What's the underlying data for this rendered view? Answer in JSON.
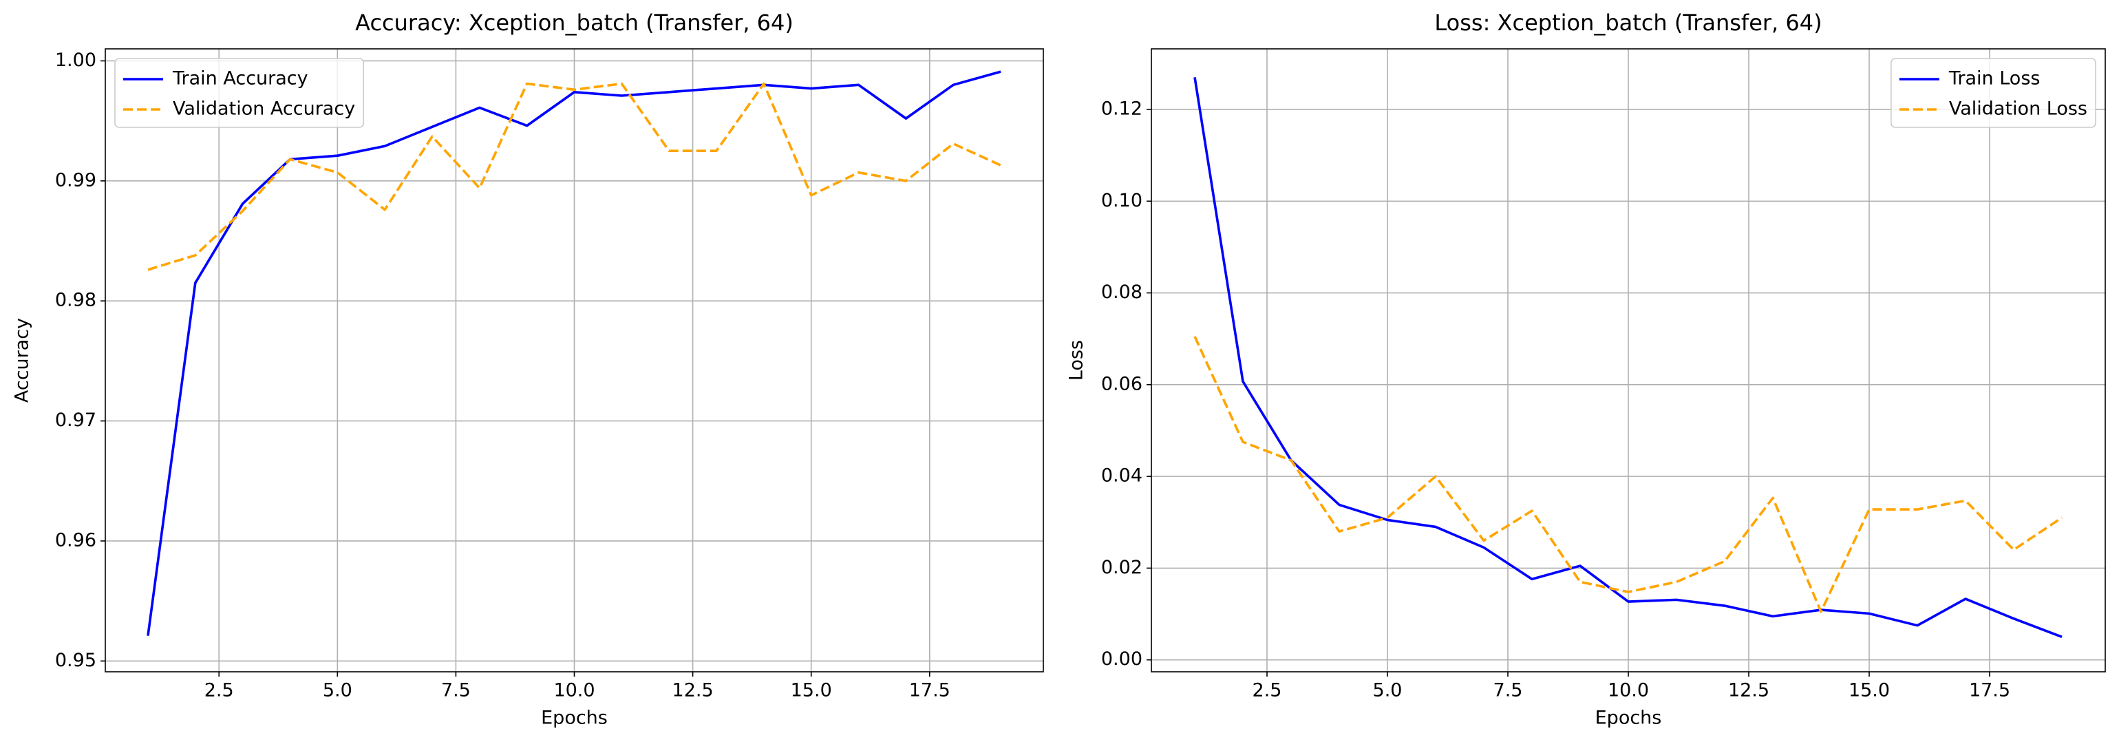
{
  "chart_data": [
    {
      "type": "line",
      "title": "Accuracy: Xception_batch (Transfer, 64)",
      "xlabel": "Epochs",
      "ylabel": "Accuracy",
      "x": [
        1,
        2,
        3,
        4,
        5,
        6,
        7,
        8,
        9,
        10,
        11,
        12,
        13,
        14,
        15,
        16,
        17,
        18,
        19
      ],
      "series": [
        {
          "name": "Train Accuracy",
          "color": "#0000ff",
          "dash": false,
          "values": [
            0.9521,
            0.9815,
            0.9881,
            0.9918,
            0.9921,
            0.9929,
            0.9945,
            0.9961,
            0.9946,
            0.9974,
            0.9971,
            0.9974,
            0.9977,
            0.998,
            0.9977,
            0.998,
            0.9952,
            0.998,
            0.9991
          ]
        },
        {
          "name": "Validation Accuracy",
          "color": "#ffa500",
          "dash": true,
          "values": [
            0.9826,
            0.9838,
            0.9875,
            0.9918,
            0.9907,
            0.9876,
            0.9937,
            0.9894,
            0.9981,
            0.9976,
            0.9981,
            0.9925,
            0.9925,
            0.9981,
            0.9888,
            0.9907,
            0.99,
            0.9931,
            0.9913
          ]
        }
      ],
      "xlim": [
        0.1,
        19.9
      ],
      "ylim": [
        0.9491,
        1.001
      ],
      "xticks": [
        2.5,
        {
          "value": 5,
          "label": "5.0"
        },
        7.5,
        {
          "value": 10,
          "label": "10.0"
        },
        12.5,
        {
          "value": 15,
          "label": "15.0"
        },
        17.5
      ],
      "yticks": [
        0.95,
        0.96,
        0.97,
        0.98,
        0.99,
        {
          "value": 1,
          "label": "1.00"
        }
      ],
      "grid": true,
      "legend": "upper left"
    },
    {
      "type": "line",
      "title": "Loss: Xception_batch (Transfer, 64)",
      "xlabel": "Epochs",
      "ylabel": "Loss",
      "x": [
        1,
        2,
        3,
        4,
        5,
        6,
        7,
        8,
        9,
        10,
        11,
        12,
        13,
        14,
        15,
        16,
        17,
        18,
        19
      ],
      "series": [
        {
          "name": "Train Loss",
          "color": "#0000ff",
          "dash": false,
          "values": [
            0.127,
            0.0607,
            0.0435,
            0.0338,
            0.0305,
            0.029,
            0.0245,
            0.0176,
            0.0205,
            0.0127,
            0.0131,
            0.0118,
            0.0095,
            0.0109,
            0.0101,
            0.0075,
            0.0133,
            0.009,
            0.005
          ]
        },
        {
          "name": "Validation Loss",
          "color": "#ffa500",
          "dash": true,
          "values": [
            0.0705,
            0.0475,
            0.0435,
            0.028,
            0.031,
            0.04,
            0.026,
            0.0325,
            0.017,
            0.0148,
            0.017,
            0.0215,
            0.0353,
            0.0105,
            0.0328,
            0.0328,
            0.0347,
            0.024,
            0.031
          ]
        }
      ],
      "xlim": [
        0.1,
        19.9
      ],
      "ylim": [
        -0.0026,
        0.1332
      ],
      "xticks": [
        2.5,
        {
          "value": 5,
          "label": "5.0"
        },
        7.5,
        {
          "value": 10,
          "label": "10.0"
        },
        12.5,
        {
          "value": 15,
          "label": "15.0"
        },
        17.5
      ],
      "yticks": [
        {
          "value": 0,
          "label": "0.00"
        },
        0.02,
        0.04,
        0.06,
        0.08,
        {
          "value": 0.1,
          "label": "0.10"
        },
        0.12
      ],
      "grid": true,
      "legend": "upper right"
    }
  ]
}
